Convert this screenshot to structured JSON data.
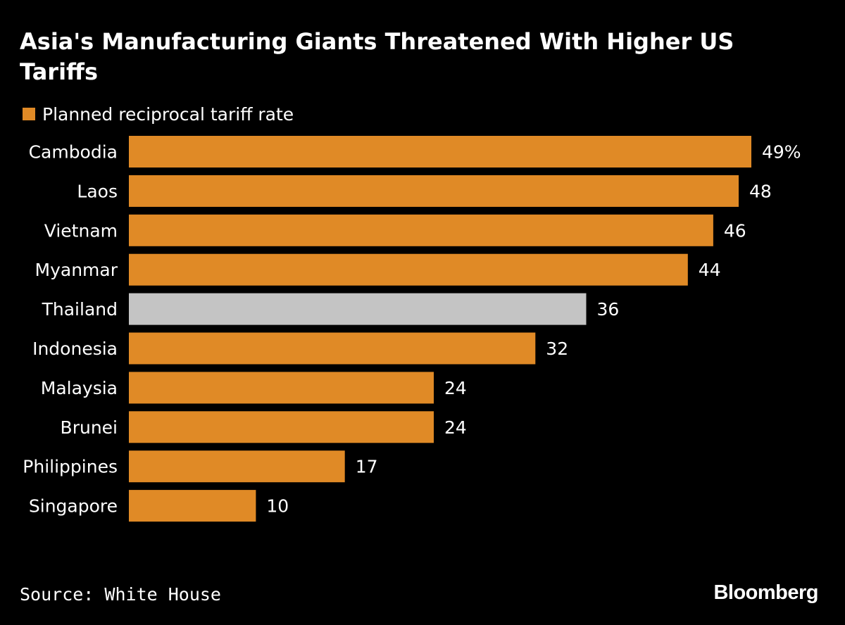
{
  "title": "Asia's Manufacturing Giants Threatened With Higher US Tariffs",
  "legend": {
    "label": "Planned reciprocal tariff rate",
    "color": "#e08a26"
  },
  "source": "Source: White House",
  "brand": "Bloomberg",
  "colors": {
    "bar": "#e08a26",
    "highlight": "#c4c4c4",
    "background": "#000000",
    "text": "#ffffff"
  },
  "chart_data": {
    "type": "bar",
    "orientation": "horizontal",
    "title": "Asia's Manufacturing Giants Threatened With Higher US Tariffs",
    "categories": [
      "Cambodia",
      "Laos",
      "Vietnam",
      "Myanmar",
      "Thailand",
      "Indonesia",
      "Malaysia",
      "Brunei",
      "Philippines",
      "Singapore"
    ],
    "series": [
      {
        "name": "Planned reciprocal tariff rate",
        "values": [
          49,
          48,
          46,
          44,
          36,
          32,
          24,
          24,
          17,
          10
        ]
      }
    ],
    "value_labels": [
      "49%",
      "48",
      "46",
      "44",
      "36",
      "32",
      "24",
      "24",
      "17",
      "10"
    ],
    "highlight": "Thailand",
    "unit": "%",
    "xlim": [
      0,
      49
    ],
    "grid": false,
    "legend_position": "top-left"
  }
}
